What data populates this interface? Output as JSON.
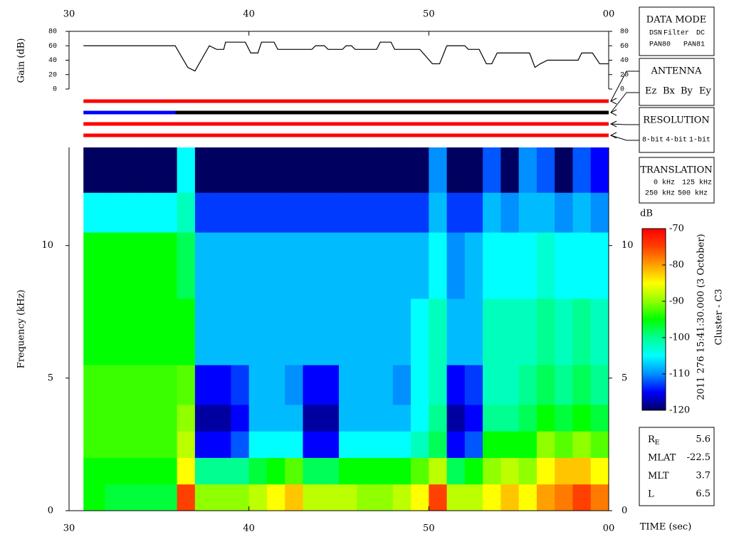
{
  "chart_data": [
    {
      "type": "line",
      "y_label": "Gain (dB)",
      "color": "#000000",
      "x": [
        30.8,
        35.9,
        36.6,
        37.0,
        37.8,
        38.2,
        38.6,
        38.7,
        39.8,
        40.1,
        40.5,
        40.7,
        41.4,
        41.6,
        43.5,
        43.7,
        44.2,
        44.4,
        45.2,
        45.4,
        45.7,
        45.9,
        47.1,
        47.3,
        47.9,
        48.1,
        49.5,
        50.2,
        50.6,
        51.0,
        52.0,
        52.2,
        52.8,
        53.2,
        53.5,
        53.8,
        55.6,
        55.9,
        56.2,
        56.6,
        58.3,
        58.5,
        59.1,
        59.5,
        60
      ],
      "values": [
        60,
        60,
        30,
        25,
        60,
        55,
        55,
        65,
        65,
        50,
        50,
        65,
        65,
        55,
        55,
        60,
        60,
        55,
        55,
        60,
        60,
        55,
        55,
        65,
        65,
        55,
        55,
        35,
        35,
        60,
        60,
        55,
        55,
        35,
        35,
        50,
        50,
        30,
        35,
        40,
        40,
        50,
        50,
        35,
        35
      ],
      "xlim": [
        30,
        60
      ],
      "xticks": [
        30,
        40,
        50,
        {
          "value": 60,
          "label": "00"
        }
      ],
      "ylim": [
        0,
        80
      ],
      "yticks": [
        0,
        20,
        40,
        60,
        80
      ]
    },
    {
      "type": "mode-bars",
      "xlim": [
        30,
        60
      ],
      "bars": [
        {
          "title": "DATA MODE",
          "legend": [
            {
              "name": "DSN",
              "color": "#ff0000"
            },
            {
              "name": "Filter",
              "color": "#00c000"
            },
            {
              "name": "DC",
              "color": "#0000ff"
            },
            {
              "name": "PAN80",
              "color": "#000000"
            },
            {
              "name": "PAN81",
              "color": "#00c8c8"
            }
          ],
          "segments": [
            {
              "start": 30.8,
              "end": 60,
              "color": "#ff0000"
            }
          ]
        },
        {
          "title": "ANTENNA",
          "legend": [
            {
              "name": "Ez",
              "color": "#ff0000"
            },
            {
              "name": "Bx",
              "color": "#00c000"
            },
            {
              "name": "By",
              "color": "#0000ff"
            },
            {
              "name": "Ey",
              "color": "#000000"
            }
          ],
          "segments": [
            {
              "start": 30.8,
              "end": 35.9,
              "color": "#0000ff"
            },
            {
              "start": 35.9,
              "end": 60,
              "color": "#000000"
            }
          ]
        },
        {
          "title": "RESOLUTION",
          "legend": [
            {
              "name": "8-bit",
              "color": "#ff0000"
            },
            {
              "name": "4-bit",
              "color": "#00c000"
            },
            {
              "name": "1-bit",
              "color": "#0000ff"
            }
          ],
          "segments": [
            {
              "start": 30.8,
              "end": 60,
              "color": "#ff0000"
            }
          ]
        },
        {
          "title": "TRANSLATION",
          "legend": [
            {
              "name": "0 kHz",
              "color": "#ff0000"
            },
            {
              "name": "125 kHz",
              "color": "#00c000"
            },
            {
              "name": "250 kHz",
              "color": "#0000ff"
            },
            {
              "name": "500 kHz",
              "color": "#000000"
            }
          ],
          "segments": [
            {
              "start": 30.8,
              "end": 60,
              "color": "#ff0000"
            }
          ]
        }
      ]
    },
    {
      "type": "heatmap",
      "x_label": "TIME (sec)",
      "y_label": "Frequency (kHz)",
      "xlim": [
        30,
        60
      ],
      "xticks": [
        30,
        40,
        50,
        {
          "value": 60,
          "label": "00"
        }
      ],
      "ylim": [
        0,
        13.7
      ],
      "yticks": [
        0,
        5,
        10
      ],
      "x_bins": [
        30.8,
        32,
        33,
        34,
        35,
        36,
        37,
        38,
        39,
        40,
        41,
        42,
        43,
        44,
        45,
        46,
        47,
        48,
        49,
        50,
        51,
        52,
        53,
        54,
        55,
        56,
        57,
        58,
        59,
        60
      ],
      "y_bins": [
        0,
        1,
        2,
        3,
        4,
        5.5,
        8,
        10.5,
        12,
        13.7
      ],
      "z": [
        [
          -95,
          -97,
          -97,
          -97,
          -97,
          -75,
          -90,
          -90,
          -90,
          -88,
          -85,
          -82,
          -88,
          -88,
          -88,
          -90,
          -90,
          -88,
          -85,
          -75,
          -88,
          -88,
          -85,
          -82,
          -85,
          -80,
          -78,
          -75,
          -78
        ],
        [
          -95,
          -95,
          -95,
          -95,
          -95,
          -85,
          -100,
          -100,
          -100,
          -97,
          -95,
          -92,
          -98,
          -98,
          -95,
          -95,
          -95,
          -95,
          -92,
          -88,
          -98,
          -95,
          -90,
          -88,
          -90,
          -85,
          -82,
          -82,
          -85
        ],
        [
          -93,
          -93,
          -93,
          -93,
          -93,
          -88,
          -115,
          -115,
          -112,
          -105,
          -105,
          -105,
          -115,
          -115,
          -105,
          -105,
          -105,
          -105,
          -102,
          -98,
          -115,
          -112,
          -95,
          -95,
          -95,
          -90,
          -92,
          -90,
          -92
        ],
        [
          -93,
          -93,
          -93,
          -93,
          -93,
          -90,
          -118,
          -118,
          -115,
          -108,
          -108,
          -108,
          -118,
          -118,
          -108,
          -108,
          -108,
          -108,
          -105,
          -100,
          -118,
          -115,
          -100,
          -100,
          -98,
          -95,
          -97,
          -95,
          -97
        ],
        [
          -93,
          -93,
          -93,
          -93,
          -93,
          -92,
          -115,
          -115,
          -113,
          -108,
          -108,
          -110,
          -115,
          -115,
          -108,
          -108,
          -108,
          -110,
          -105,
          -102,
          -115,
          -113,
          -102,
          -102,
          -100,
          -98,
          -100,
          -98,
          -100
        ],
        [
          -95,
          -95,
          -95,
          -95,
          -95,
          -95,
          -108,
          -108,
          -108,
          -108,
          -108,
          -108,
          -108,
          -108,
          -108,
          -108,
          -108,
          -108,
          -105,
          -102,
          -108,
          -108,
          -102,
          -102,
          -102,
          -100,
          -102,
          -100,
          -102
        ],
        [
          -95,
          -95,
          -95,
          -95,
          -95,
          -98,
          -108,
          -108,
          -108,
          -108,
          -108,
          -108,
          -108,
          -108,
          -108,
          -108,
          -108,
          -108,
          -108,
          -105,
          -110,
          -108,
          -105,
          -105,
          -105,
          -103,
          -105,
          -105,
          -105
        ],
        [
          -105,
          -105,
          -105,
          -105,
          -105,
          -102,
          -113,
          -113,
          -113,
          -113,
          -113,
          -113,
          -113,
          -113,
          -113,
          -113,
          -113,
          -113,
          -113,
          -108,
          -113,
          -113,
          -108,
          -110,
          -108,
          -108,
          -110,
          -108,
          -110
        ],
        [
          -120,
          -120,
          -120,
          -120,
          -120,
          -105,
          -120,
          -120,
          -120,
          -120,
          -120,
          -120,
          -120,
          -120,
          -120,
          -120,
          -120,
          -120,
          -120,
          -110,
          -120,
          -120,
          -112,
          -120,
          -110,
          -112,
          -120,
          -112,
          -115
        ]
      ],
      "colorbar": {
        "label": "dB",
        "zlim": [
          -120,
          -70
        ],
        "ticks": [
          -70,
          -80,
          -90,
          -100,
          -110,
          -120
        ],
        "colors": [
          "#000060",
          "#0000ff",
          "#0090ff",
          "#00ffff",
          "#00ff90",
          "#00ff00",
          "#90ff00",
          "#ffff00",
          "#ffa000",
          "#ff4000",
          "#ff0000"
        ]
      },
      "annotation": "2011 276 15:41:30.000 (3 October)",
      "spacecraft": "Cluster - C3"
    }
  ],
  "ephemeris": [
    {
      "label": "R",
      "subscript": "E",
      "value": 5.6
    },
    {
      "label": "MLAT",
      "value": -22.5
    },
    {
      "label": "MLT",
      "value": 3.7
    },
    {
      "label": "L",
      "value": 6.5
    }
  ]
}
